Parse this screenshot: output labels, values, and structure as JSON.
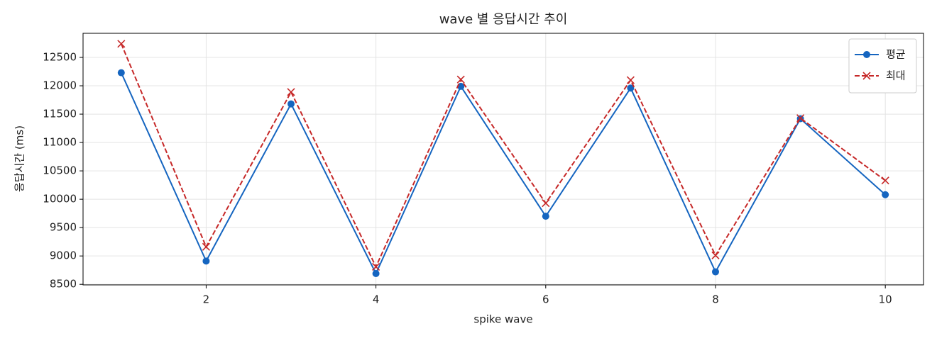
{
  "chart_data": {
    "type": "line",
    "title": "wave 별 응답시간 추이",
    "xlabel": "spike wave",
    "ylabel": "응답시간 (ms)",
    "x": [
      1,
      2,
      3,
      4,
      5,
      6,
      7,
      8,
      9,
      10
    ],
    "series": [
      {
        "name": "평균",
        "color": "#1565c0",
        "marker": "circle",
        "linestyle": "solid",
        "values": [
          12230,
          8910,
          11680,
          8690,
          11990,
          9700,
          11960,
          8720,
          11420,
          10080
        ]
      },
      {
        "name": "최대",
        "color": "#c62828",
        "marker": "x",
        "linestyle": "dashed",
        "values": [
          12740,
          9160,
          11890,
          8810,
          12110,
          9930,
          12100,
          9010,
          11430,
          10330
        ]
      }
    ],
    "xlim": [
      0.55,
      10.45
    ],
    "ylim": [
      8490,
      12925
    ],
    "xticks": [
      2,
      4,
      6,
      8,
      10
    ],
    "yticks": [
      8500,
      9000,
      9500,
      10000,
      10500,
      11000,
      11500,
      12000,
      12500
    ],
    "grid": true,
    "legend": "upper right"
  }
}
